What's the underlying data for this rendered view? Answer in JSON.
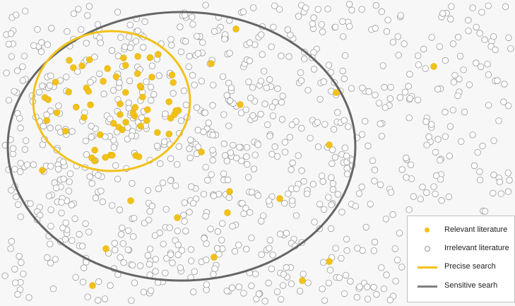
{
  "legend": {
    "relevant": "Relevant literature",
    "irrelevant": "Irrelevant literature",
    "precise": "Precise search",
    "sensitive": "Sensitive searh"
  },
  "colors": {
    "relevant": "#f2c21a",
    "irrelevant_stroke": "#9a9a9a",
    "precise": "#f2c21a",
    "sensitive": "#666666"
  }
}
